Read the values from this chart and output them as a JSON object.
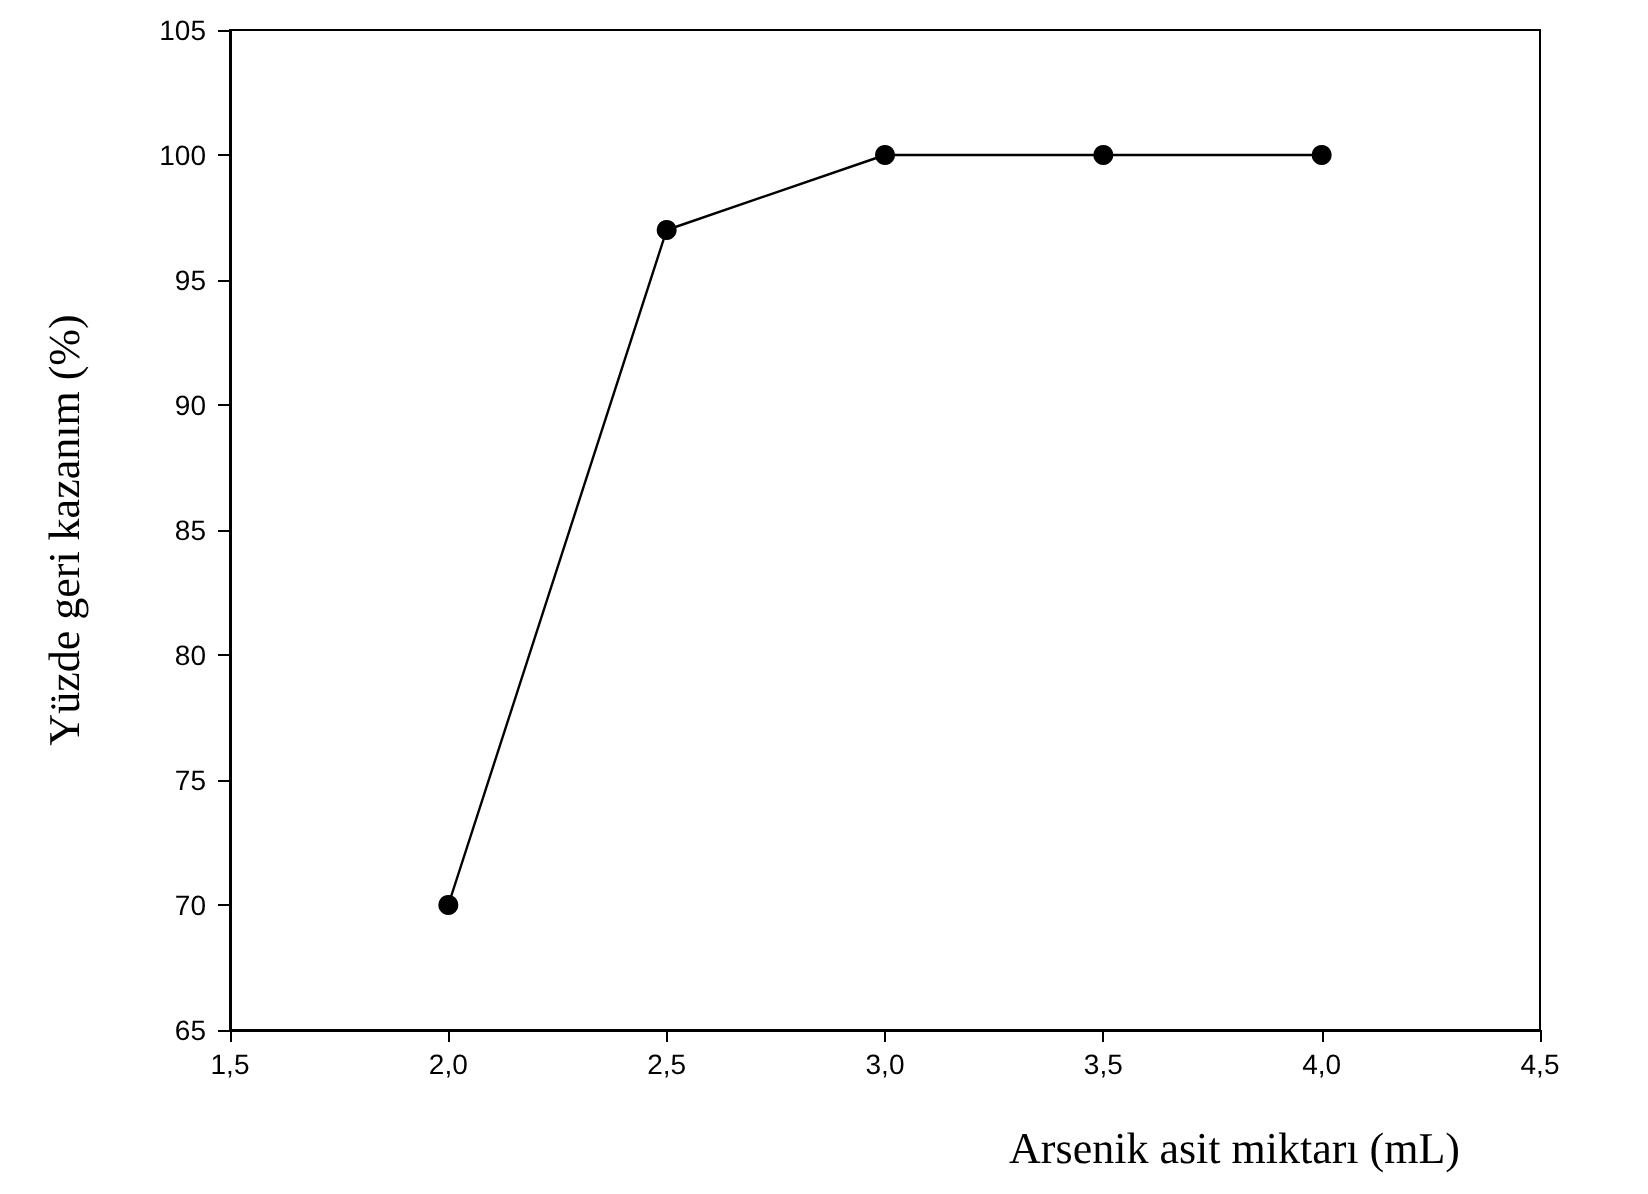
{
  "chart_data": {
    "type": "line",
    "xlabel": "Arsenik asit miktarı (mL)",
    "ylabel": "Yüzde geri kazanım (%)",
    "x": [
      2.0,
      2.5,
      3.0,
      3.5,
      4.0
    ],
    "series": [
      {
        "color": "#000000",
        "values": [
          70,
          97,
          100,
          100,
          100
        ]
      }
    ],
    "xlim": [
      1.5,
      4.5
    ],
    "xticks": [
      {
        "value": 1.5,
        "label": "1,5"
      },
      {
        "value": 2.0,
        "label": "2,0"
      },
      {
        "value": 2.5,
        "label": "2,5"
      },
      {
        "value": 3.0,
        "label": "3,0"
      },
      {
        "value": 3.5,
        "label": "3,5"
      },
      {
        "value": 4.0,
        "label": "4,0"
      },
      {
        "value": 4.5,
        "label": "4,5"
      }
    ],
    "ylim": [
      65,
      105
    ],
    "yticks": [
      65,
      70,
      75,
      80,
      85,
      90,
      95,
      100,
      105
    ],
    "marker": "circle",
    "line_style": "solid",
    "grid": false
  }
}
